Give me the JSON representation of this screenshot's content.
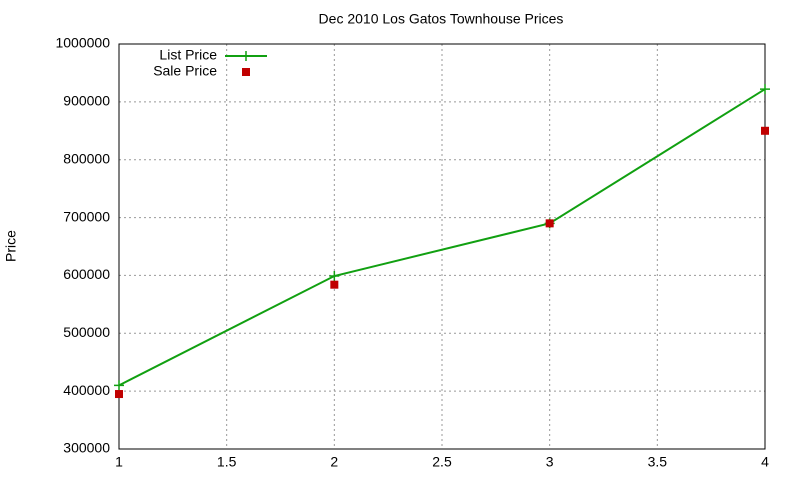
{
  "chart_data": {
    "type": "line",
    "title": "Dec 2010 Los Gatos Townhouse Prices",
    "ylabel": "Price",
    "x": [
      1,
      2,
      3,
      4
    ],
    "series": [
      {
        "name": "List Price",
        "color": "#11a011",
        "style": "linespoints",
        "values": [
          410000,
          599000,
          690000,
          922000
        ]
      },
      {
        "name": "Sale Price",
        "color": "#c00000",
        "style": "points",
        "values": [
          395000,
          584000,
          690000,
          850000
        ]
      }
    ],
    "xlim": [
      1,
      4
    ],
    "xticks": [
      1,
      1.5,
      2,
      2.5,
      3,
      3.5,
      4
    ],
    "ylim": [
      300000,
      1000000
    ],
    "yticks": [
      300000,
      400000,
      500000,
      600000,
      700000,
      800000,
      900000,
      1000000
    ],
    "grid": true,
    "legend": "top-left"
  }
}
